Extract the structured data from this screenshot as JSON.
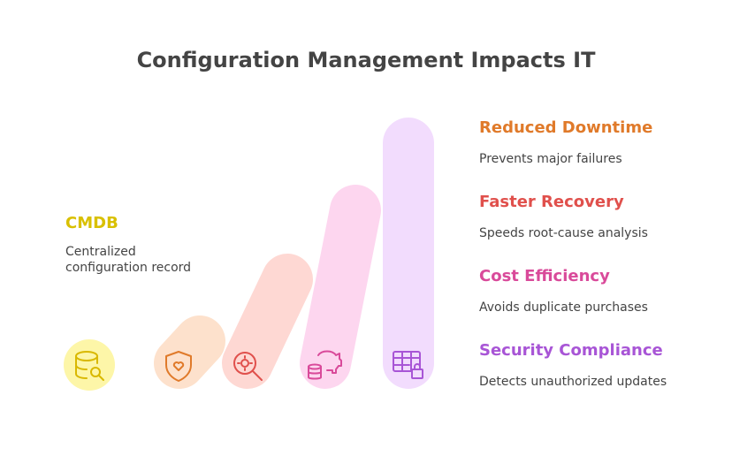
{
  "title": "Configuration Management Impacts IT",
  "cmdb": {
    "title": "CMDB",
    "description": "Centralized configuration record"
  },
  "impacts": [
    {
      "title": "Reduced Downtime",
      "description": "Prevents major failures"
    },
    {
      "title": "Faster Recovery",
      "description": "Speeds root-cause analysis"
    },
    {
      "title": "Cost Efficiency",
      "description": "Avoids duplicate purchases"
    },
    {
      "title": "Security Compliance",
      "description": "Detects unauthorized updates"
    }
  ]
}
